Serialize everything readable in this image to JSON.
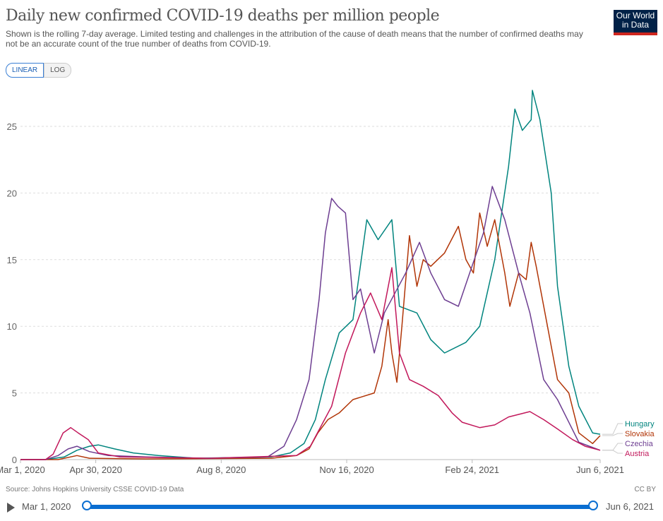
{
  "header": {
    "title": "Daily new confirmed COVID-19 deaths per million people",
    "subtitle": "Shown is the rolling 7-day average. Limited testing and challenges in the attribution of the cause of death means that the number of confirmed deaths may not be an accurate count of the true number of deaths from COVID-19.",
    "logo": "Our World in Data",
    "linear": "LINEAR",
    "log": "LOG"
  },
  "footer": {
    "source": "Source: Johns Hopkins University CSSE COVID-19 Data",
    "license": "CC BY",
    "start": "Mar 1, 2020",
    "end": "Jun 6, 2021"
  },
  "timeline": {
    "start_fraction": 0,
    "end_fraction": 1
  },
  "chart_data": {
    "type": "line",
    "xlabel": "",
    "ylabel": "",
    "ylim": [
      0,
      27.7
    ],
    "xrange_days": [
      0,
      462
    ],
    "grid": true,
    "yticks": [
      0,
      5,
      10,
      15,
      20,
      25
    ],
    "xticks": [
      {
        "day": 0,
        "label": "Mar 1, 2020"
      },
      {
        "day": 60,
        "label": "Apr 30, 2020"
      },
      {
        "day": 160,
        "label": "Aug 8, 2020"
      },
      {
        "day": 260,
        "label": "Nov 16, 2020"
      },
      {
        "day": 360,
        "label": "Feb 24, 2021"
      },
      {
        "day": 462,
        "label": "Jun 6, 2021"
      }
    ],
    "series": [
      {
        "name": "Hungary",
        "color": "#00847e",
        "points": [
          [
            0,
            0
          ],
          [
            20,
            0
          ],
          [
            35,
            0.2
          ],
          [
            45,
            0.7
          ],
          [
            55,
            1.0
          ],
          [
            62,
            1.1
          ],
          [
            75,
            0.8
          ],
          [
            90,
            0.5
          ],
          [
            110,
            0.3
          ],
          [
            140,
            0.1
          ],
          [
            200,
            0.2
          ],
          [
            215,
            0.5
          ],
          [
            226,
            1.2
          ],
          [
            235,
            3
          ],
          [
            243,
            6
          ],
          [
            254,
            9.5
          ],
          [
            265,
            10.5
          ],
          [
            276,
            18
          ],
          [
            285,
            16.5
          ],
          [
            296,
            18
          ],
          [
            302,
            11.5
          ],
          [
            316,
            11
          ],
          [
            327,
            9
          ],
          [
            338,
            8
          ],
          [
            355,
            8.8
          ],
          [
            366,
            10
          ],
          [
            378,
            15
          ],
          [
            389,
            22
          ],
          [
            394,
            26.3
          ],
          [
            400,
            24.7
          ],
          [
            407,
            25.5
          ],
          [
            408,
            27.7
          ],
          [
            414,
            25.5
          ],
          [
            423,
            20
          ],
          [
            428,
            13
          ],
          [
            437,
            7
          ],
          [
            445,
            4
          ],
          [
            456,
            2
          ],
          [
            462,
            1.9
          ]
        ]
      },
      {
        "name": "Slovakia",
        "color": "#b13507",
        "points": [
          [
            0,
            0
          ],
          [
            30,
            0
          ],
          [
            45,
            0.3
          ],
          [
            55,
            0.1
          ],
          [
            100,
            0.05
          ],
          [
            200,
            0.1
          ],
          [
            220,
            0.3
          ],
          [
            230,
            0.8
          ],
          [
            237,
            2
          ],
          [
            245,
            3
          ],
          [
            254,
            3.5
          ],
          [
            265,
            4.5
          ],
          [
            282,
            5
          ],
          [
            288,
            7
          ],
          [
            293,
            10.5
          ],
          [
            296,
            8
          ],
          [
            300,
            5.8
          ],
          [
            304,
            10
          ],
          [
            310,
            16.8
          ],
          [
            316,
            13
          ],
          [
            321,
            15
          ],
          [
            327,
            14.5
          ],
          [
            338,
            15.5
          ],
          [
            349,
            17.5
          ],
          [
            355,
            15
          ],
          [
            361,
            14
          ],
          [
            366,
            18.5
          ],
          [
            372,
            16
          ],
          [
            378,
            18
          ],
          [
            386,
            14
          ],
          [
            390,
            11.5
          ],
          [
            397,
            14
          ],
          [
            403,
            13.5
          ],
          [
            407,
            16.3
          ],
          [
            411,
            14.5
          ],
          [
            420,
            10
          ],
          [
            428,
            6
          ],
          [
            437,
            5
          ],
          [
            445,
            2
          ],
          [
            456,
            1.2
          ],
          [
            462,
            1.8
          ]
        ]
      },
      {
        "name": "Czechia",
        "color": "#6d3e91",
        "points": [
          [
            0,
            0
          ],
          [
            20,
            0
          ],
          [
            30,
            0.3
          ],
          [
            38,
            0.8
          ],
          [
            45,
            1.0
          ],
          [
            55,
            0.6
          ],
          [
            70,
            0.3
          ],
          [
            100,
            0.2
          ],
          [
            150,
            0.1
          ],
          [
            197,
            0.2
          ],
          [
            210,
            1
          ],
          [
            220,
            3
          ],
          [
            230,
            6
          ],
          [
            238,
            12
          ],
          [
            243,
            17
          ],
          [
            248,
            19.6
          ],
          [
            253,
            19
          ],
          [
            259,
            18.5
          ],
          [
            265,
            12
          ],
          [
            271,
            12.8
          ],
          [
            282,
            8
          ],
          [
            290,
            11
          ],
          [
            307,
            14
          ],
          [
            318,
            16.3
          ],
          [
            327,
            14
          ],
          [
            338,
            12
          ],
          [
            349,
            11.5
          ],
          [
            358,
            14
          ],
          [
            369,
            17
          ],
          [
            376,
            20.5
          ],
          [
            386,
            18
          ],
          [
            397,
            14
          ],
          [
            406,
            11
          ],
          [
            417,
            6
          ],
          [
            428,
            4.5
          ],
          [
            437,
            2.8
          ],
          [
            445,
            1.3
          ],
          [
            462,
            0.7
          ]
        ]
      },
      {
        "name": "Austria",
        "color": "#c2185b",
        "points": [
          [
            0,
            0
          ],
          [
            20,
            0
          ],
          [
            26,
            0.4
          ],
          [
            34,
            2
          ],
          [
            40,
            2.4
          ],
          [
            46,
            2
          ],
          [
            54,
            1.5
          ],
          [
            62,
            0.5
          ],
          [
            79,
            0.2
          ],
          [
            150,
            0.1
          ],
          [
            220,
            0.3
          ],
          [
            231,
            1
          ],
          [
            248,
            4
          ],
          [
            259,
            8
          ],
          [
            271,
            11
          ],
          [
            279,
            12.5
          ],
          [
            288,
            10.5
          ],
          [
            296,
            14.4
          ],
          [
            302,
            8
          ],
          [
            310,
            6
          ],
          [
            321,
            5.5
          ],
          [
            333,
            4.8
          ],
          [
            344,
            3.5
          ],
          [
            352,
            2.8
          ],
          [
            366,
            2.4
          ],
          [
            378,
            2.6
          ],
          [
            389,
            3.2
          ],
          [
            406,
            3.6
          ],
          [
            417,
            3
          ],
          [
            428,
            2.3
          ],
          [
            440,
            1.5
          ],
          [
            450,
            1.0
          ],
          [
            462,
            0.7
          ]
        ]
      }
    ]
  }
}
